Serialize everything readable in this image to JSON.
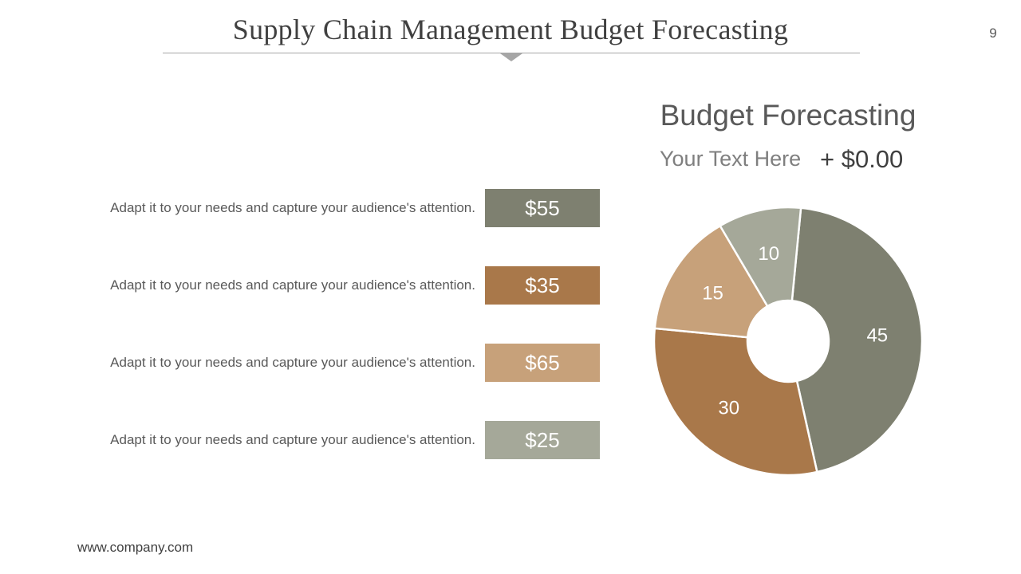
{
  "header": {
    "title": "Supply Chain Management Budget Forecasting",
    "page_number": "9"
  },
  "rows": [
    {
      "text": "Adapt it to your needs and capture your audience's attention.",
      "value": "$55",
      "color": "#7e8070"
    },
    {
      "text": "Adapt it to your needs and capture your audience's attention.",
      "value": "$35",
      "color": "#a9784a"
    },
    {
      "text": "Adapt it to your needs and capture your audience's attention.",
      "value": "$65",
      "color": "#c7a17a"
    },
    {
      "text": "Adapt it to your needs and capture your audience's attention.",
      "value": "$25",
      "color": "#a5a899"
    }
  ],
  "summary": {
    "label": "Your Text Here",
    "value": "+ $0.00"
  },
  "chart_data": {
    "type": "pie",
    "title": "Budget Forecasting",
    "categories": [
      "45",
      "30",
      "15",
      "10"
    ],
    "values": [
      45,
      30,
      15,
      10
    ],
    "colors": [
      "#7e8070",
      "#a9784a",
      "#c7a17a",
      "#a5a899"
    ],
    "hole": "donut"
  },
  "footer": {
    "website": "www.company.com"
  }
}
